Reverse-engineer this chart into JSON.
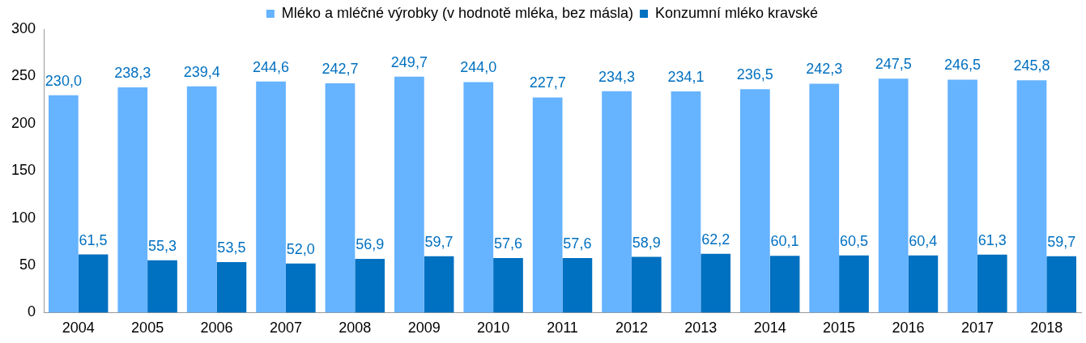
{
  "chart_data": {
    "type": "bar",
    "categories": [
      "2004",
      "2005",
      "2006",
      "2007",
      "2008",
      "2009",
      "2010",
      "2011",
      "2012",
      "2013",
      "2014",
      "2015",
      "2016",
      "2017",
      "2018"
    ],
    "series": [
      {
        "name": "Mléko a mléčné výrobky (v hodnotě mléka, bez másla)",
        "color": "#66b3ff",
        "values": [
          230.0,
          238.3,
          239.4,
          244.6,
          242.7,
          249.7,
          244.0,
          227.7,
          234.3,
          234.1,
          236.5,
          242.3,
          247.5,
          246.5,
          245.8
        ],
        "value_labels": [
          "230,0",
          "238,3",
          "239,4",
          "244,6",
          "242,7",
          "249,7",
          "244,0",
          "227,7",
          "234,3",
          "234,1",
          "236,5",
          "242,3",
          "247,5",
          "246,5",
          "245,8"
        ]
      },
      {
        "name": "Konzumní mléko kravské",
        "color": "#0070c0",
        "values": [
          61.5,
          55.3,
          53.5,
          52.0,
          56.9,
          59.7,
          57.6,
          57.6,
          58.9,
          62.2,
          60.1,
          60.5,
          60.4,
          61.3,
          59.7
        ],
        "value_labels": [
          "61,5",
          "55,3",
          "53,5",
          "52,0",
          "56,9",
          "59,7",
          "57,6",
          "57,6",
          "58,9",
          "62,2",
          "60,1",
          "60,5",
          "60,4",
          "61,3",
          "59,7"
        ]
      }
    ],
    "ylim": [
      0,
      300
    ],
    "yticks": [
      0,
      50,
      100,
      150,
      200,
      250,
      300
    ],
    "grid": false,
    "legend": "top"
  }
}
